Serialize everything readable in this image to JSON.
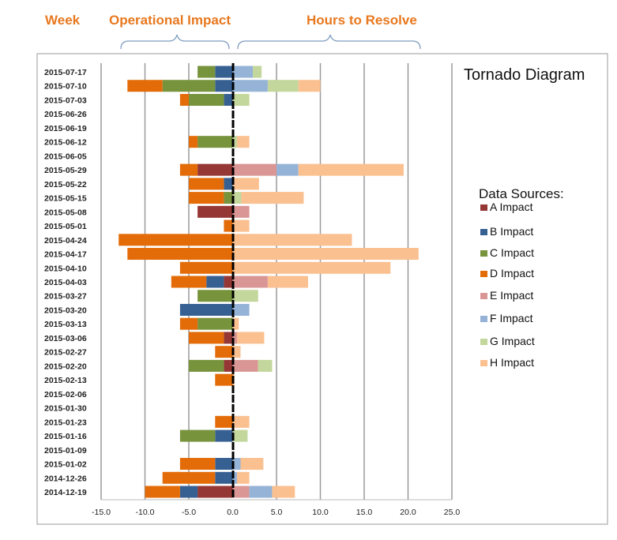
{
  "headers": {
    "week": "Week",
    "operational": "Operational Impact",
    "hours": "Hours to Resolve"
  },
  "chart_data": {
    "type": "bar",
    "orientation": "horizontal-stacked-diverging",
    "title": "Tornado Diagram",
    "legend_title": "Data Sources:",
    "legend_position": "right",
    "grid": true,
    "xlim": [
      -15,
      25
    ],
    "x_ticks": [
      "-15.0",
      "-10.0",
      "-5.0",
      "0.0",
      "5.0",
      "10.0",
      "15.0",
      "20.0",
      "25.0"
    ],
    "categories": [
      "2015-07-17",
      "2015-07-10",
      "2015-07-03",
      "2015-06-26",
      "2015-06-19",
      "2015-06-12",
      "2015-06-05",
      "2015-05-29",
      "2015-05-22",
      "2015-05-15",
      "2015-05-08",
      "2015-05-01",
      "2015-04-24",
      "2015-04-17",
      "2015-04-10",
      "2015-04-03",
      "2015-03-27",
      "2015-03-20",
      "2015-03-13",
      "2015-03-06",
      "2015-02-27",
      "2015-02-20",
      "2015-02-13",
      "2015-02-06",
      "2015-01-30",
      "2015-01-23",
      "2015-01-16",
      "2015-01-09",
      "2015-01-02",
      "2014-12-26",
      "2014-12-19"
    ],
    "series": [
      {
        "name": "A Impact",
        "color": "#953735",
        "values": [
          0,
          0,
          0,
          0,
          0,
          0,
          0,
          -4,
          0,
          0,
          -4,
          0,
          0,
          0,
          0,
          -1,
          0,
          0,
          0,
          -1,
          0,
          -1,
          0,
          0,
          0,
          0,
          0,
          0,
          0,
          0,
          -4
        ]
      },
      {
        "name": "B Impact",
        "color": "#376092",
        "values": [
          -2,
          -2,
          -1,
          0,
          0,
          0,
          0,
          0,
          -1,
          0,
          0,
          0,
          0,
          0,
          0,
          -2,
          0,
          -6,
          0,
          0,
          0,
          0,
          0,
          0,
          0,
          0,
          -2,
          0,
          -2,
          -2,
          -2
        ]
      },
      {
        "name": "C Impact",
        "color": "#77933c",
        "values": [
          -2,
          -6,
          -4,
          0,
          0,
          -4,
          0,
          0,
          0,
          -1,
          0,
          0,
          0,
          0,
          0,
          0,
          -4,
          0,
          -4,
          0,
          0,
          -4,
          0,
          0,
          0,
          0,
          -4,
          0,
          0,
          0,
          0
        ]
      },
      {
        "name": "D Impact",
        "color": "#e36c09",
        "values": [
          0,
          -4,
          -1,
          0,
          0,
          -1,
          0,
          -2,
          -4,
          -4,
          0,
          -1,
          -13,
          -12,
          -6,
          -4,
          0,
          0,
          -2,
          -4,
          -2,
          0,
          -2,
          0,
          0,
          -2,
          0,
          0,
          -4,
          -6,
          -4
        ]
      },
      {
        "name": "E Impact",
        "color": "#d99694",
        "values": [
          0,
          0,
          0,
          0,
          0,
          0,
          0,
          5,
          0,
          0,
          1.9,
          0,
          0,
          0,
          0,
          4,
          0,
          0,
          0,
          0.5,
          0,
          2.9,
          0,
          0,
          0,
          0,
          0,
          0,
          0,
          0,
          1.9
        ]
      },
      {
        "name": "F Impact",
        "color": "#95b3d7",
        "values": [
          2.3,
          4,
          0,
          0,
          0,
          0,
          0,
          2.5,
          0,
          0,
          0,
          0,
          0,
          0,
          0,
          0,
          0,
          1.9,
          0,
          0,
          0,
          0,
          0,
          0,
          0,
          0,
          0,
          0,
          0.9,
          0.5,
          2.6
        ]
      },
      {
        "name": "G Impact",
        "color": "#c3d69b",
        "values": [
          1,
          3.5,
          1.9,
          0,
          0,
          0.5,
          0,
          0,
          0,
          1,
          0,
          0,
          0,
          0,
          0,
          0,
          2.9,
          0,
          0,
          0,
          0,
          1.6,
          0,
          0,
          0,
          0,
          1.7,
          0,
          0,
          0,
          0
        ]
      },
      {
        "name": "H Impact",
        "color": "#fac090",
        "values": [
          0,
          2.5,
          0,
          0,
          0,
          1.4,
          0,
          12,
          3,
          7.1,
          0,
          1.9,
          13.6,
          21.2,
          18,
          4.6,
          0,
          0,
          0.7,
          3.1,
          0.9,
          0,
          0.2,
          0,
          0,
          1.9,
          0,
          0,
          2.6,
          1.4,
          2.6
        ]
      }
    ]
  }
}
